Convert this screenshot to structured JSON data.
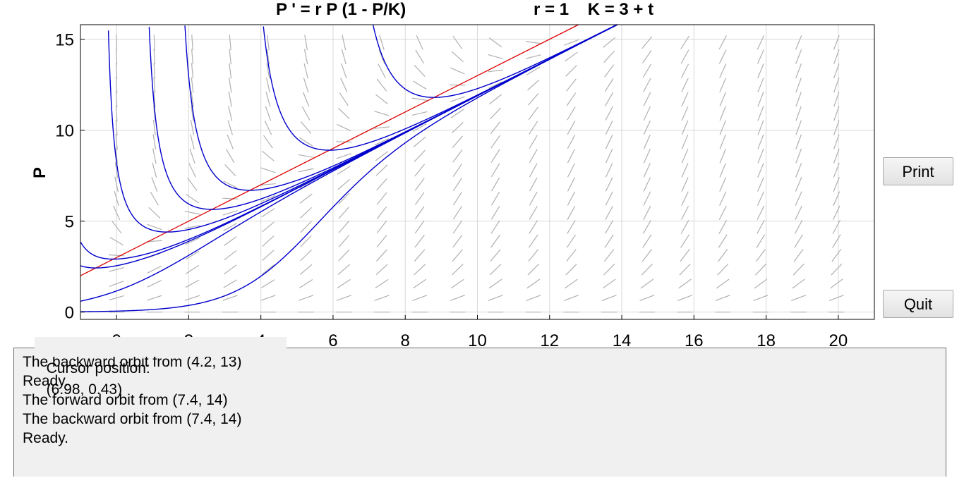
{
  "title": {
    "equation": "P ' = r P (1 - P/K)",
    "params": "r = 1    K = 3 + t"
  },
  "buttons": {
    "print": "Print",
    "quit": "Quit"
  },
  "cursor": {
    "label": "Cursor position:",
    "value": "(6.98, 0.43)"
  },
  "messages": [
    "The backward orbit from (4.2, 13)",
    "Ready.",
    "The forward orbit from (7.4, 14)",
    "The backward orbit from (7.4, 14)",
    "Ready."
  ],
  "colors": {
    "solution": "#0000cc",
    "nullcline": "#dd0000",
    "field": "#b0b0b0",
    "grid": "#d8d8d8"
  },
  "chart_data": {
    "type": "line",
    "title": "P ' = r P (1 - P/K)",
    "subtitle": "r = 1    K = 3 + t",
    "xlabel": "",
    "ylabel": "P",
    "xlim": [
      -1,
      21
    ],
    "ylim": [
      -0.4,
      15.8
    ],
    "x_ticks": [
      0,
      2,
      4,
      6,
      8,
      10,
      12,
      14,
      16,
      18,
      20
    ],
    "y_ticks": [
      0,
      5,
      10,
      15
    ],
    "grid": true,
    "model": {
      "r": 1,
      "K_offset": 3
    },
    "series": [
      {
        "x0": -1.0,
        "p0": 2.0,
        "kind": "nullcline"
      },
      {
        "x0": -1.0,
        "p0": 0.02,
        "kind": "solution"
      },
      {
        "x0": -1.0,
        "p0": 0.6,
        "kind": "solution"
      },
      {
        "x0": 0.0,
        "p0": 2.55,
        "kind": "solution"
      },
      {
        "x0": -0.6,
        "p0": 3.1,
        "kind": "solution"
      },
      {
        "x0": 1.4,
        "p0": 4.4,
        "kind": "solution"
      },
      {
        "x0": 3.0,
        "p0": 5.7,
        "kind": "solution"
      },
      {
        "x0": 4.2,
        "p0": 6.8,
        "kind": "solution"
      },
      {
        "x0": 5.9,
        "p0": 8.9,
        "kind": "solution"
      },
      {
        "x0": 8.8,
        "p0": 11.8,
        "kind": "solution"
      }
    ]
  }
}
